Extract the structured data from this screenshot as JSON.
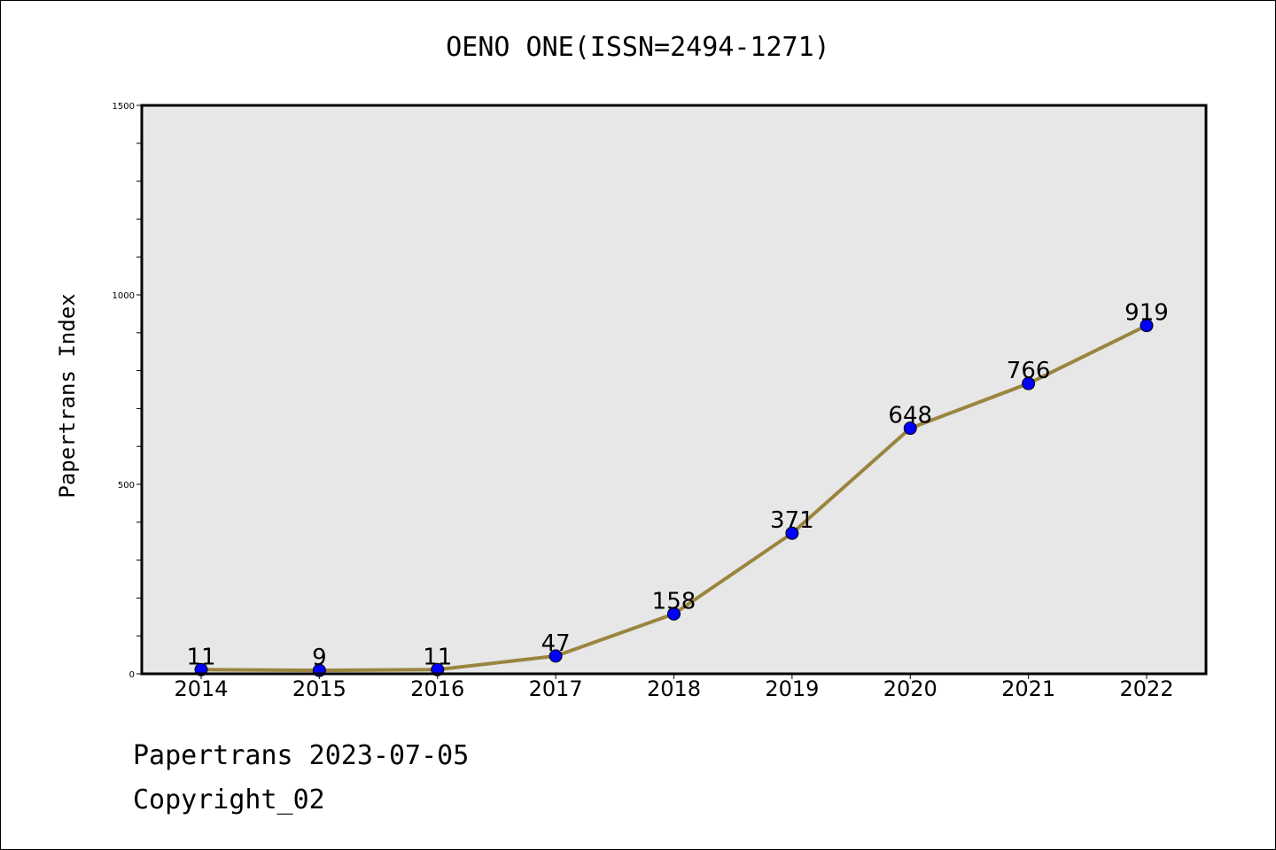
{
  "chart_data": {
    "type": "line",
    "title": "OENO ONE(ISSN=2494-1271)",
    "xlabel": "",
    "ylabel": "Papertrans Index",
    "categories": [
      "2014",
      "2015",
      "2016",
      "2017",
      "2018",
      "2019",
      "2020",
      "2021",
      "2022"
    ],
    "series": [
      {
        "values": [
          11,
          9,
          11,
          47,
          158,
          371,
          648,
          766,
          919
        ],
        "line_color": "#9a8540",
        "marker_color": "#0000ff"
      }
    ],
    "data_labels": [
      "11",
      "9",
      "11",
      "47",
      "158",
      "371",
      "648",
      "766",
      "919"
    ],
    "ylim": [
      0,
      1500
    ],
    "yticks": [
      "0",
      "500",
      "1000",
      "1500"
    ],
    "yminor_step": 100,
    "grid": false,
    "plot_background": "#e7e7e7",
    "legend": "none"
  },
  "footer": {
    "line1": "Papertrans 2023-07-05",
    "line2": "Copyright_02"
  }
}
